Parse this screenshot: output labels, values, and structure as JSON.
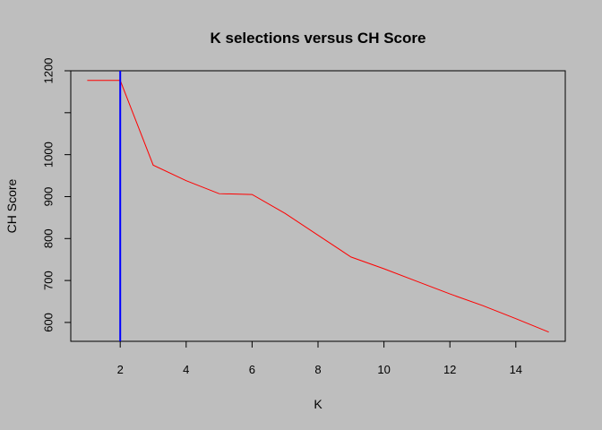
{
  "chart_data": {
    "type": "line",
    "title": "K selections versus CH Score",
    "xlabel": "K",
    "ylabel": "CH Score",
    "xlim": [
      0.5,
      15.5
    ],
    "ylim": [
      555,
      1200
    ],
    "xticks": [
      2,
      4,
      6,
      8,
      10,
      12,
      14
    ],
    "yticks": [
      600,
      700,
      800,
      900,
      1000,
      1100,
      1200
    ],
    "ytick_labels": [
      "600",
      "700",
      "800",
      "900",
      "1000",
      "",
      "1200"
    ],
    "grid": false,
    "series": [
      {
        "color": "#ff0000",
        "x": [
          1,
          2,
          3,
          4,
          5,
          6,
          7,
          8,
          9,
          10,
          11,
          12,
          13,
          14,
          15
        ],
        "y": [
          1177,
          1177,
          975,
          938,
          907,
          905,
          860,
          808,
          756,
          728,
          698,
          668,
          640,
          609,
          577
        ]
      }
    ],
    "vline": {
      "x": 2,
      "color": "#0000ff"
    }
  }
}
